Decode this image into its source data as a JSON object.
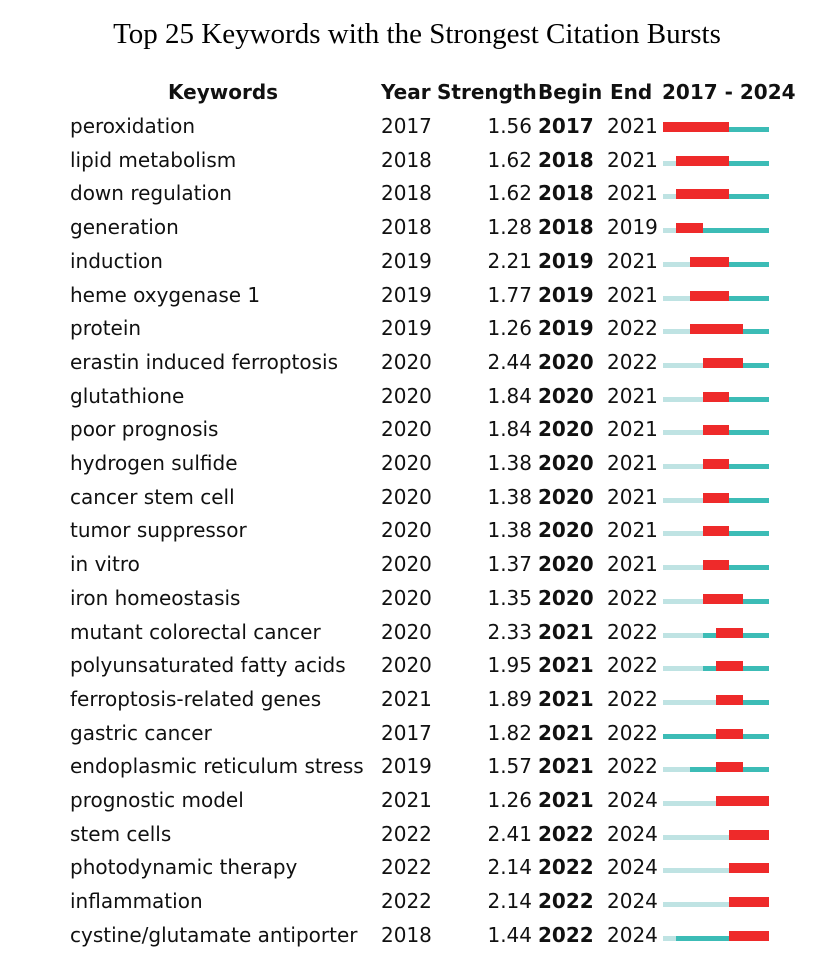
{
  "chart_data": {
    "type": "table",
    "title": "Top 25 Keywords with the Strongest Citation Bursts",
    "columns": [
      "Keywords",
      "Year",
      "Strength",
      "Begin",
      "End",
      "2017 - 2024"
    ],
    "range": [
      2017,
      2024
    ],
    "colors": {
      "before": "#bfe3e3",
      "active": "#3cbcb6",
      "burst": "#ee2a2a"
    },
    "rows": [
      [
        "peroxidation",
        2017,
        "1.56",
        2017,
        2021
      ],
      [
        "lipid metabolism",
        2018,
        "1.62",
        2018,
        2021
      ],
      [
        "down regulation",
        2018,
        "1.62",
        2018,
        2021
      ],
      [
        "generation",
        2018,
        "1.28",
        2018,
        2019
      ],
      [
        "induction",
        2019,
        "2.21",
        2019,
        2021
      ],
      [
        "heme oxygenase 1",
        2019,
        "1.77",
        2019,
        2021
      ],
      [
        "protein",
        2019,
        "1.26",
        2019,
        2022
      ],
      [
        "erastin induced ferroptosis",
        2020,
        "2.44",
        2020,
        2022
      ],
      [
        "glutathione",
        2020,
        "1.84",
        2020,
        2021
      ],
      [
        "poor prognosis",
        2020,
        "1.84",
        2020,
        2021
      ],
      [
        "hydrogen sulfide",
        2020,
        "1.38",
        2020,
        2021
      ],
      [
        "cancer stem cell",
        2020,
        "1.38",
        2020,
        2021
      ],
      [
        "tumor suppressor",
        2020,
        "1.38",
        2020,
        2021
      ],
      [
        "in vitro",
        2020,
        "1.37",
        2020,
        2021
      ],
      [
        "iron homeostasis",
        2020,
        "1.35",
        2020,
        2022
      ],
      [
        "mutant colorectal cancer",
        2020,
        "2.33",
        2021,
        2022
      ],
      [
        "polyunsaturated fatty acids",
        2020,
        "1.95",
        2021,
        2022
      ],
      [
        "ferroptosis-related genes",
        2021,
        "1.89",
        2021,
        2022
      ],
      [
        "gastric cancer",
        2017,
        "1.82",
        2021,
        2022
      ],
      [
        "endoplasmic reticulum stress",
        2019,
        "1.57",
        2021,
        2022
      ],
      [
        "prognostic model",
        2021,
        "1.26",
        2021,
        2024
      ],
      [
        "stem cells",
        2022,
        "2.41",
        2022,
        2024
      ],
      [
        "photodynamic therapy",
        2022,
        "2.14",
        2022,
        2024
      ],
      [
        "inflammation",
        2022,
        "2.14",
        2022,
        2024
      ],
      [
        "cystine/glutamate antiporter",
        2018,
        "1.44",
        2022,
        2024
      ]
    ]
  }
}
